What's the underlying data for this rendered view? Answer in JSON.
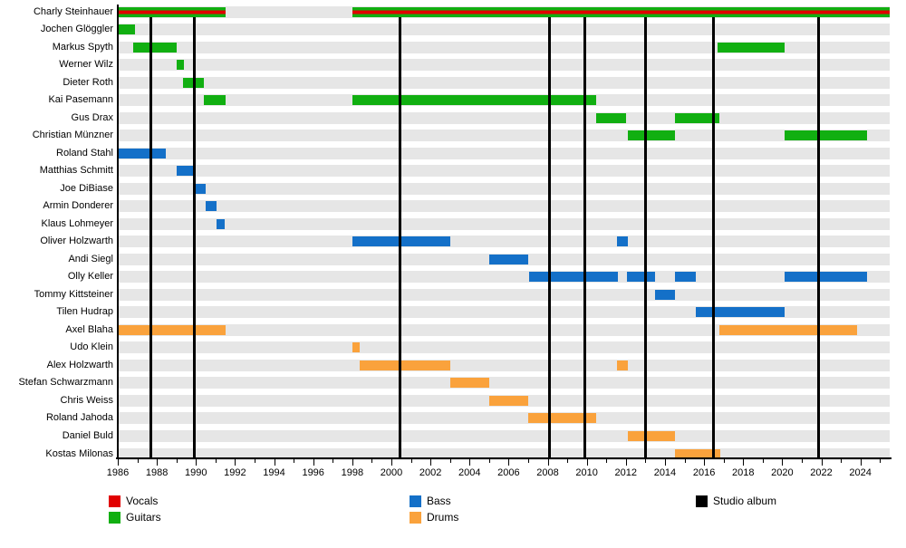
{
  "chart_data": {
    "type": "timeline",
    "title": "Band members timeline (Gantt chart)",
    "x_axis": {
      "min_year": 1986,
      "max_year": 2025.5,
      "minor_tick_every": 1,
      "label_every": 2,
      "tick_labels": [
        "1986",
        "1988",
        "1990",
        "1992",
        "1994",
        "1996",
        "1998",
        "2000",
        "2002",
        "2004",
        "2006",
        "2008",
        "2010",
        "2012",
        "2014",
        "2016",
        "2018",
        "2020",
        "2022",
        "2024"
      ]
    },
    "grid": "horizontal-row-bands",
    "legend_position": "bottom",
    "role_colors": {
      "vocals": "#e10000",
      "guitars": "#11af11",
      "bass": "#1470c8",
      "drums": "#faa23c"
    },
    "studio_album_color": "#000000",
    "studio_album_years": [
      1987.7,
      1989.9,
      2000.45,
      2008.1,
      2009.9,
      2013.0,
      2016.5,
      2021.85
    ],
    "members": [
      {
        "name": "Charly Steinhauer",
        "role": "vocals+guitars",
        "bars": [
          {
            "start": 1986.05,
            "end": 1991.5
          },
          {
            "start": 1998.0,
            "end": 2025.5
          }
        ]
      },
      {
        "name": "Jochen Glöggler",
        "role": "guitars",
        "bars": [
          {
            "start": 1986.05,
            "end": 1986.9
          }
        ]
      },
      {
        "name": "Markus Spyth",
        "role": "guitars",
        "bars": [
          {
            "start": 1986.8,
            "end": 1989.0
          },
          {
            "start": 2016.7,
            "end": 2020.1
          }
        ]
      },
      {
        "name": "Werner Wilz",
        "role": "guitars",
        "bars": [
          {
            "start": 1989.0,
            "end": 1989.4
          }
        ]
      },
      {
        "name": "Dieter Roth",
        "role": "guitars",
        "bars": [
          {
            "start": 1989.35,
            "end": 1990.4
          }
        ]
      },
      {
        "name": "Kai Pasemann",
        "role": "guitars",
        "bars": [
          {
            "start": 1990.4,
            "end": 1991.5
          },
          {
            "start": 1998.0,
            "end": 2010.5
          }
        ]
      },
      {
        "name": "Gus Drax",
        "role": "guitars",
        "bars": [
          {
            "start": 2010.5,
            "end": 2012.0
          },
          {
            "start": 2014.5,
            "end": 2016.8
          }
        ]
      },
      {
        "name": "Christian Münzner",
        "role": "guitars",
        "bars": [
          {
            "start": 2012.1,
            "end": 2014.5
          },
          {
            "start": 2020.1,
            "end": 2024.35
          }
        ]
      },
      {
        "name": "Roland Stahl",
        "role": "bass",
        "bars": [
          {
            "start": 1986.05,
            "end": 1988.45
          }
        ]
      },
      {
        "name": "Matthias Schmitt",
        "role": "bass",
        "bars": [
          {
            "start": 1989.0,
            "end": 1989.9
          }
        ]
      },
      {
        "name": "Joe DiBiase",
        "role": "bass",
        "bars": [
          {
            "start": 1989.9,
            "end": 1990.5
          }
        ]
      },
      {
        "name": "Armin Donderer",
        "role": "bass",
        "bars": [
          {
            "start": 1990.5,
            "end": 1991.05
          }
        ]
      },
      {
        "name": "Klaus Lohmeyer",
        "role": "bass",
        "bars": [
          {
            "start": 1991.05,
            "end": 1991.45
          }
        ]
      },
      {
        "name": "Oliver Holzwarth",
        "role": "bass",
        "bars": [
          {
            "start": 1998.0,
            "end": 2003.0
          },
          {
            "start": 2011.55,
            "end": 2012.1
          }
        ]
      },
      {
        "name": "Andi Siegl",
        "role": "bass",
        "bars": [
          {
            "start": 2005.0,
            "end": 2007.0
          }
        ]
      },
      {
        "name": "Olly Keller",
        "role": "bass",
        "bars": [
          {
            "start": 2007.05,
            "end": 2011.6
          },
          {
            "start": 2012.05,
            "end": 2013.5
          },
          {
            "start": 2014.5,
            "end": 2015.6
          },
          {
            "start": 2020.1,
            "end": 2024.35
          }
        ]
      },
      {
        "name": "Tommy Kittsteiner",
        "role": "bass",
        "bars": [
          {
            "start": 2013.5,
            "end": 2014.5
          }
        ]
      },
      {
        "name": "Tilen Hudrap",
        "role": "bass",
        "bars": [
          {
            "start": 2015.6,
            "end": 2020.1
          }
        ]
      },
      {
        "name": "Axel Blaha",
        "role": "drums",
        "bars": [
          {
            "start": 1986.05,
            "end": 1991.5
          },
          {
            "start": 2016.8,
            "end": 2023.85
          }
        ]
      },
      {
        "name": "Udo Klein",
        "role": "drums",
        "bars": [
          {
            "start": 1998.0,
            "end": 1998.4
          }
        ]
      },
      {
        "name": "Alex Holzwarth",
        "role": "drums",
        "bars": [
          {
            "start": 1998.4,
            "end": 2003.0
          },
          {
            "start": 2011.55,
            "end": 2012.1
          }
        ]
      },
      {
        "name": "Stefan Schwarzmann",
        "role": "drums",
        "bars": [
          {
            "start": 2003.0,
            "end": 2005.0
          }
        ]
      },
      {
        "name": "Chris Weiss",
        "role": "drums",
        "bars": [
          {
            "start": 2005.0,
            "end": 2007.0
          }
        ]
      },
      {
        "name": "Roland Jahoda",
        "role": "drums",
        "bars": [
          {
            "start": 2007.0,
            "end": 2010.5
          }
        ]
      },
      {
        "name": "Daniel Buld",
        "role": "drums",
        "bars": [
          {
            "start": 2012.1,
            "end": 2014.5
          }
        ]
      },
      {
        "name": "Kostas Milonas",
        "role": "drums",
        "bars": [
          {
            "start": 2014.5,
            "end": 2016.85
          }
        ]
      }
    ]
  },
  "legend": {
    "items": [
      {
        "label": "Vocals",
        "color": "#e10000",
        "col": 0,
        "row": 0
      },
      {
        "label": "Guitars",
        "color": "#11af11",
        "col": 0,
        "row": 1
      },
      {
        "label": "Bass",
        "color": "#1470c8",
        "col": 1,
        "row": 0
      },
      {
        "label": "Drums",
        "color": "#faa23c",
        "col": 1,
        "row": 1
      },
      {
        "label": "Studio album",
        "color": "#000000",
        "col": 2,
        "row": 0
      }
    ]
  }
}
